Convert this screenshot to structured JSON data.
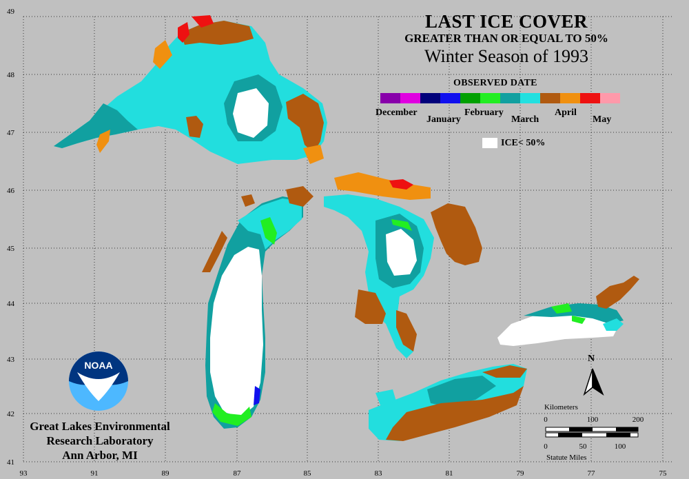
{
  "title": {
    "line1": "LAST ICE COVER",
    "line2": "GREATER THAN OR EQUAL TO 50%",
    "line3": "Winter Season of 1993"
  },
  "legend": {
    "heading": "OBSERVED DATE",
    "months": [
      "December",
      "January",
      "February",
      "March",
      "April",
      "May"
    ],
    "colors": [
      "#8800aa",
      "#e000e0",
      "#00007a",
      "#1010ee",
      "#00a000",
      "#22ee22",
      "#11a0a0",
      "#22e0e0",
      "#b05a10",
      "#f09010",
      "#ee1111",
      "#ff99aa"
    ],
    "ice_label": "ICE< 50%"
  },
  "axes": {
    "latitude_labels": [
      "49",
      "48",
      "47",
      "46",
      "45",
      "44",
      "43",
      "42",
      "41"
    ],
    "longitude_labels": [
      "93",
      "91",
      "89",
      "87",
      "85",
      "83",
      "81",
      "79",
      "77",
      "75"
    ]
  },
  "scale_bar": {
    "km_label": "Kilometers",
    "km_ticks": [
      "0",
      "100",
      "200"
    ],
    "mi_ticks": [
      "0",
      "50",
      "100"
    ],
    "mi_label": "Statute Miles"
  },
  "north": "N",
  "logo_text": "NOAA",
  "credit": {
    "line1": "Great Lakes Environmental",
    "line2": "Research Laboratory",
    "line3": "Ann Arbor, MI"
  }
}
